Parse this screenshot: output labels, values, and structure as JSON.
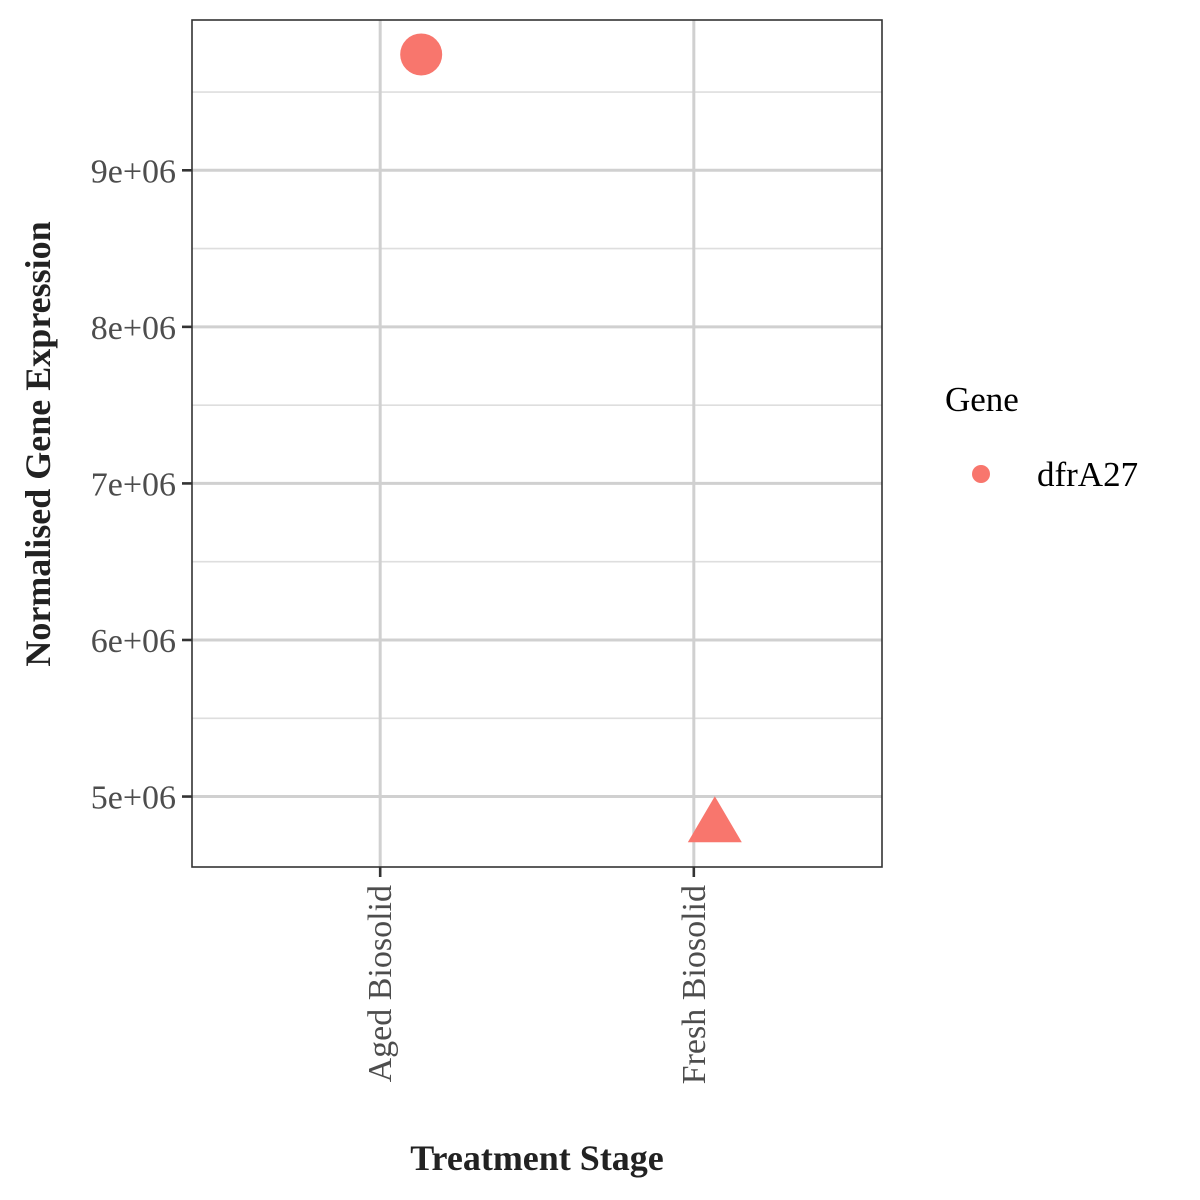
{
  "chart_data": {
    "type": "scatter",
    "title": "",
    "xlabel": "Treatment Stage",
    "ylabel": "Normalised Gene Expression",
    "categories": [
      "Aged Biosolid",
      "Fresh Biosolid"
    ],
    "ylim": [
      4550000,
      9960000
    ],
    "yticks": [
      5000000,
      6000000,
      7000000,
      8000000,
      9000000
    ],
    "ytick_labels": [
      "5e+06",
      "6e+06",
      "7e+06",
      "8e+06",
      "9e+06"
    ],
    "grid": true,
    "legend": {
      "title": "Gene",
      "position": "right",
      "entries": [
        {
          "label": "dfrA27",
          "color": "#F8766D"
        }
      ]
    },
    "series": [
      {
        "name": "dfrA27",
        "color": "#F8766D",
        "points": [
          {
            "x": "Aged Biosolid",
            "y": 9740000,
            "shape": "circle"
          },
          {
            "x": "Fresh Biosolid",
            "y": 4820000,
            "shape": "triangle"
          }
        ]
      }
    ]
  }
}
